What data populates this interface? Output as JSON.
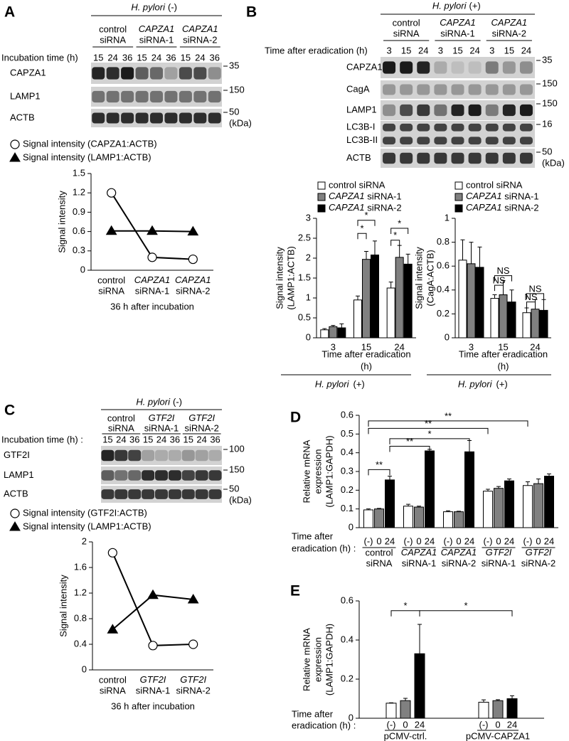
{
  "blots": [
    {
      "panel": "A",
      "strain": "H. pylori",
      "condition": "(-)",
      "groups": [
        [
          "control",
          "siRNA"
        ],
        [
          "CAPZA1",
          "siRNA-1"
        ],
        [
          "CAPZA1",
          "siRNA-2"
        ]
      ],
      "time_label": "Incubation time (h)",
      "lanes": [
        15,
        24,
        36,
        15,
        24,
        36,
        15,
        24,
        36
      ],
      "rows": [
        {
          "name": "CAPZA1",
          "marker": 35
        },
        {
          "name": "LAMP1",
          "marker": 150
        },
        {
          "name": "ACTB",
          "marker": 50
        }
      ],
      "unit": "(kDa)"
    },
    {
      "panel": "B",
      "strain": "H. pylori",
      "condition": "(+)",
      "groups": [
        [
          "control",
          "siRNA"
        ],
        [
          "CAPZA1",
          "siRNA-1"
        ],
        [
          "CAPZA1",
          "siRNA-2"
        ]
      ],
      "time_label": "Time after eradication (h)",
      "lanes": [
        3,
        15,
        24,
        3,
        15,
        24,
        3,
        15,
        24
      ],
      "rows": [
        {
          "name": "CAPZA1",
          "marker": 35
        },
        {
          "name": "CagA",
          "marker": 150
        },
        {
          "name": "LAMP1",
          "marker": 150
        },
        {
          "name": [
            "LC3B-I",
            "LC3B-II"
          ],
          "marker": 16
        },
        {
          "name": "ACTB",
          "marker": 50
        }
      ],
      "unit": "(kDa)"
    },
    {
      "panel": "C",
      "strain": "H. pylori",
      "condition": "(-)",
      "groups": [
        [
          "control",
          "siRNA"
        ],
        [
          "GTF2I",
          "siRNA-1"
        ],
        [
          "GTF2I",
          "siRNA-2"
        ]
      ],
      "time_label": "Incubation time (h) :",
      "lanes": [
        15,
        24,
        36,
        15,
        24,
        36,
        15,
        24,
        36
      ],
      "rows": [
        {
          "name": "GTF2I",
          "marker": 100
        },
        {
          "name": "LAMP1",
          "marker": 150
        },
        {
          "name": "ACTB",
          "marker": 50
        }
      ],
      "unit": "(kDa)"
    }
  ],
  "chart_data": [
    {
      "type": "line",
      "ylabel": [
        "Signal intensity"
      ],
      "xlabel": [
        "36 h after incubation"
      ],
      "categories": [
        [
          "control",
          "siRNA"
        ],
        [
          "CAPZA1",
          "siRNA-1"
        ],
        [
          "CAPZA1",
          "siRNA-2"
        ]
      ],
      "ylim": [
        0,
        1.5
      ],
      "yticks": [
        0,
        0.3,
        0.6,
        0.9,
        1.2,
        1.5
      ],
      "legend": "top-left",
      "series": [
        {
          "name": "Signal intensity (CAPZA1:ACTB)",
          "marker": "circle",
          "color": "#ffffff",
          "values": [
            1.2,
            0.2,
            0.17
          ]
        },
        {
          "name": "Signal intensity (LAMP1:ACTB)",
          "marker": "triangle",
          "color": "#000000",
          "values": [
            0.61,
            0.61,
            0.6
          ]
        }
      ]
    },
    {
      "type": "bar",
      "ylabel": [
        "Signal intensity",
        "(LAMP1:ACTB)"
      ],
      "xlabel": [
        "Time after eradication",
        "(h)"
      ],
      "footer": {
        "strain": "H. pylori",
        "condition": "(+)"
      },
      "categories": [
        3,
        15,
        24
      ],
      "ylim": [
        0,
        3
      ],
      "yticks": [
        0,
        0.5,
        1,
        1.5,
        2,
        2.5,
        3
      ],
      "legend": "top-left",
      "annotations": [
        "*",
        "*",
        "*",
        "*"
      ],
      "series": [
        {
          "name": "control siRNA",
          "color": "#ffffff",
          "values": [
            0.2,
            0.95,
            1.25
          ],
          "errors": [
            0.03,
            0.1,
            0.15
          ]
        },
        {
          "name": "CAPZA1 siRNA-1",
          "color": "#808080",
          "values": [
            0.28,
            1.97,
            2.02
          ],
          "errors": [
            0.03,
            0.2,
            0.3
          ]
        },
        {
          "name": "CAPZA1 siRNA-2",
          "color": "#000000",
          "values": [
            0.25,
            2.08,
            1.85
          ],
          "errors": [
            0.1,
            0.35,
            0.25
          ]
        }
      ]
    },
    {
      "type": "bar",
      "ylabel": [
        "Signal intensity",
        "(CagA:ACTB)"
      ],
      "xlabel": [
        "Time after eradication",
        "(h)"
      ],
      "footer": {
        "strain": "H. pylori",
        "condition": "(+)"
      },
      "categories": [
        3,
        15,
        24
      ],
      "ylim": [
        0,
        1
      ],
      "yticks": [
        0,
        0.2,
        0.4,
        0.6,
        0.8,
        1
      ],
      "legend": "top-left",
      "annotations": [
        "NS",
        "NS",
        "NS",
        "NS"
      ],
      "series": [
        {
          "name": "control siRNA",
          "color": "#ffffff",
          "values": [
            0.65,
            0.33,
            0.21
          ],
          "errors": [
            0.17,
            0.03,
            0.04
          ]
        },
        {
          "name": "CAPZA1 siRNA-1",
          "color": "#808080",
          "values": [
            0.62,
            0.36,
            0.24
          ],
          "errors": [
            0.18,
            0.12,
            0.08
          ]
        },
        {
          "name": "CAPZA1 siRNA-2",
          "color": "#000000",
          "values": [
            0.59,
            0.3,
            0.23
          ],
          "errors": [
            0.17,
            0.1,
            0.09
          ]
        }
      ]
    },
    {
      "type": "line",
      "ylabel": [
        "Signal intensity"
      ],
      "xlabel": [
        "36 h after incubation"
      ],
      "categories": [
        [
          "control",
          "siRNA"
        ],
        [
          "GTF2I",
          "siRNA-1"
        ],
        [
          "GTF2I",
          "siRNA-2"
        ]
      ],
      "ylim": [
        0,
        2
      ],
      "yticks": [
        0,
        0.4,
        0.8,
        1.2,
        1.6,
        2
      ],
      "legend": "top-left",
      "series": [
        {
          "name": "Signal intensity (GTF2I:ACTB)",
          "marker": "circle",
          "color": "#ffffff",
          "values": [
            1.83,
            0.38,
            0.4
          ]
        },
        {
          "name": "Signal intensity (LAMP1:ACTB)",
          "marker": "triangle",
          "color": "#000000",
          "values": [
            0.63,
            1.17,
            1.1
          ]
        }
      ]
    },
    {
      "type": "bar",
      "panel": "D",
      "ylabel": [
        "Relative mRNA",
        "expression",
        "(LAMP1:GAPDH)"
      ],
      "row_label": [
        "Time after",
        "eradication (h) :"
      ],
      "categories": [
        [
          "control",
          "siRNA"
        ],
        [
          "CAPZA1",
          "siRNA-1"
        ],
        [
          "CAPZA1",
          "siRNA-2"
        ],
        [
          "GTF2I",
          "siRNA-1"
        ],
        [
          "GTF2I",
          "siRNA-2"
        ]
      ],
      "ylim": [
        0,
        0.6
      ],
      "yticks": [
        0,
        0.1,
        0.2,
        0.3,
        0.4,
        0.5,
        0.6
      ],
      "annotations": [
        "**",
        "**",
        "*",
        "**",
        "**"
      ],
      "series": [
        {
          "name": "(-)",
          "color": "#ffffff",
          "values": [
            0.095,
            0.115,
            0.085,
            0.195,
            0.225
          ],
          "errors": [
            0.005,
            0.01,
            0.005,
            0.01,
            0.02
          ]
        },
        {
          "name": "0",
          "color": "#808080",
          "values": [
            0.1,
            0.11,
            0.085,
            0.21,
            0.235
          ],
          "errors": [
            0.003,
            0.005,
            0.003,
            0.01,
            0.025
          ]
        },
        {
          "name": "24",
          "color": "#000000",
          "values": [
            0.255,
            0.41,
            0.405,
            0.25,
            0.275
          ],
          "errors": [
            0.02,
            0.008,
            0.06,
            0.01,
            0.012
          ]
        }
      ]
    },
    {
      "type": "bar",
      "panel": "E",
      "ylabel": [
        "Relative mRNA",
        "expression",
        "(LAMP1:GAPDH)"
      ],
      "row_label": [
        "Time after",
        "eradication (h) :"
      ],
      "categories": [
        [
          "pCMV-ctrl."
        ],
        [
          "pCMV-CAPZA1"
        ]
      ],
      "ylim": [
        0,
        0.6
      ],
      "yticks": [
        0,
        0.2,
        0.4,
        0.6
      ],
      "annotations": [
        "*",
        "*"
      ],
      "series": [
        {
          "name": "(-)",
          "color": "#ffffff",
          "values": [
            0.077,
            0.082
          ],
          "errors": [
            0.002,
            0.012
          ]
        },
        {
          "name": "0",
          "color": "#808080",
          "values": [
            0.09,
            0.09
          ],
          "errors": [
            0.012,
            0.005
          ]
        },
        {
          "name": "24",
          "color": "#000000",
          "values": [
            0.33,
            0.1
          ],
          "errors": [
            0.15,
            0.015
          ]
        }
      ]
    }
  ]
}
